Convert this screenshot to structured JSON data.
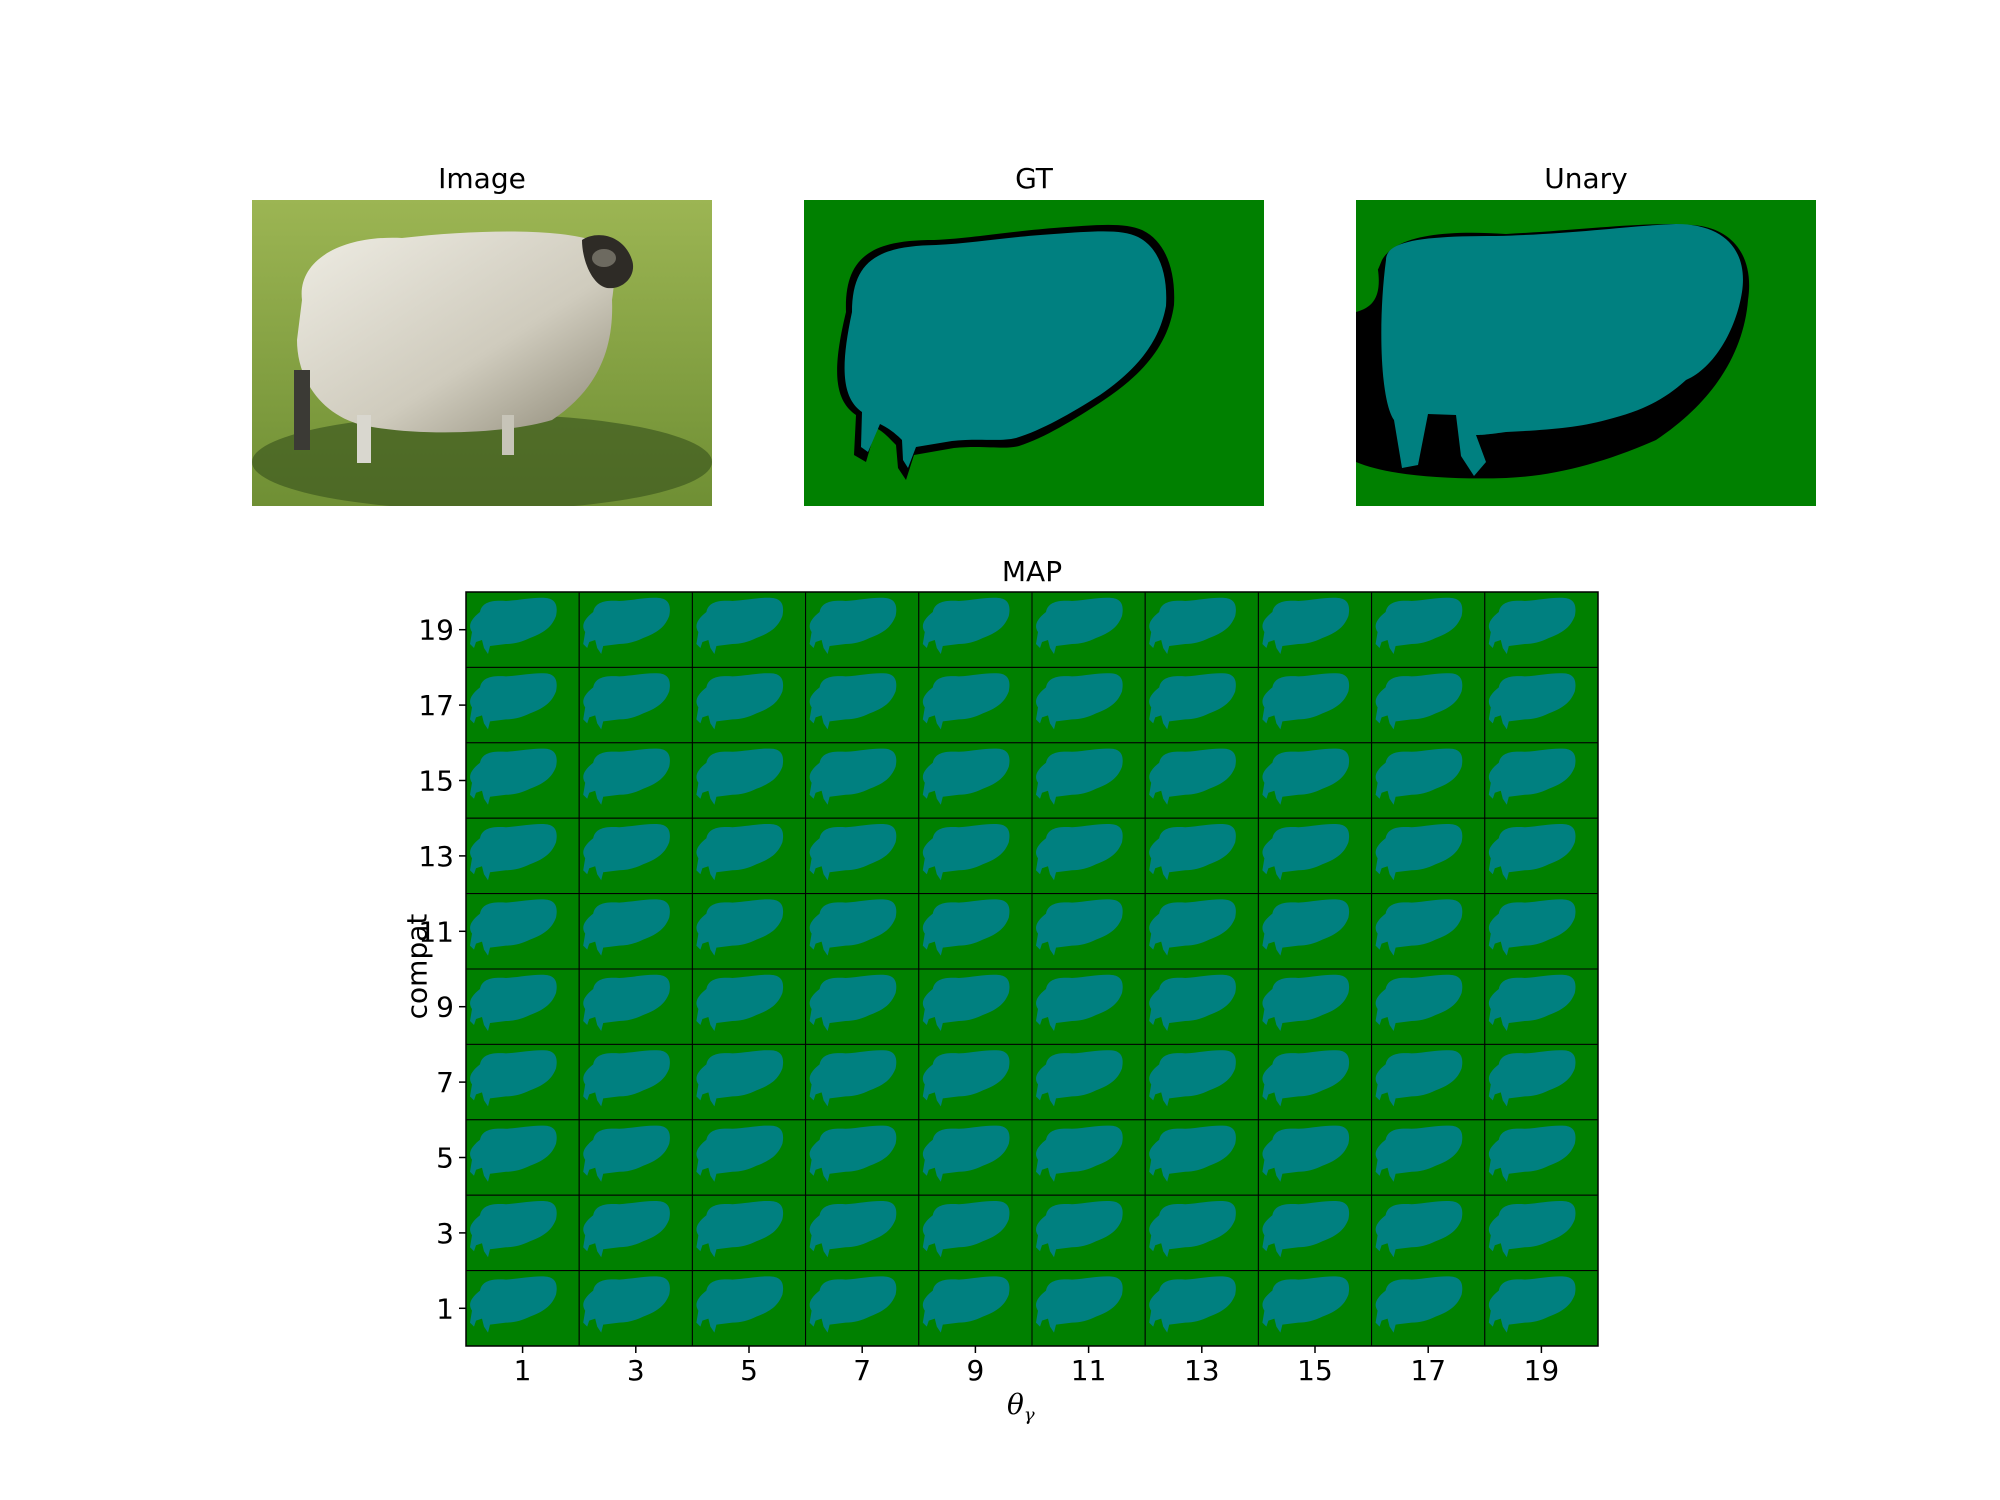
{
  "panels": {
    "image": {
      "title": "Image"
    },
    "gt": {
      "title": "GT"
    },
    "unary": {
      "title": "Unary"
    }
  },
  "map": {
    "title": "MAP",
    "xlabel": "θ",
    "xlabel_sub": "γ",
    "ylabel": "compat",
    "x_ticks": [
      "1",
      "3",
      "5",
      "7",
      "9",
      "11",
      "13",
      "15",
      "17",
      "19"
    ],
    "y_ticks": [
      "19",
      "17",
      "15",
      "13",
      "11",
      "9",
      "7",
      "5",
      "3",
      "1"
    ]
  },
  "colors": {
    "background": "#008000",
    "object": "#008080",
    "boundary": "#000000",
    "grass": "#8aa84a",
    "wool": "#d8d6cc"
  }
}
